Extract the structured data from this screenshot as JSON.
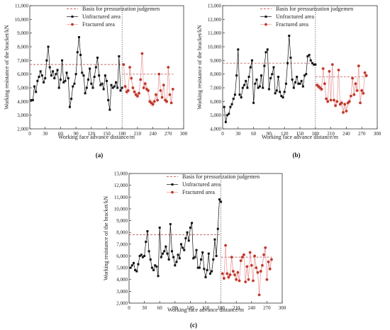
{
  "chart_data": [
    {
      "type": "line",
      "panel_label": "(a)",
      "xlabel": "Working face advance distance/m",
      "ylabel": "Working resistance of the bracket/kN",
      "xlim": [
        0,
        300
      ],
      "ylim": [
        2000,
        11000
      ],
      "xticks": [
        0,
        30,
        60,
        90,
        120,
        150,
        180,
        210,
        240,
        270,
        300
      ],
      "yticks": [
        2000,
        3000,
        4000,
        5000,
        6000,
        7000,
        8000,
        9000,
        10000,
        11000
      ],
      "divider_x": 180,
      "legend": [
        "Basis for pressurization judgemen",
        "Unfractured area",
        "Fractured area"
      ],
      "basis_lines": [
        {
          "x": [
            0,
            180
          ],
          "y": 6700
        },
        {
          "x": [
            180,
            280
          ],
          "y": 6000
        }
      ],
      "series": [
        {
          "name": "Unfractured area",
          "x": [
            3,
            6,
            9,
            12,
            15,
            18,
            21,
            24,
            27,
            30,
            33,
            36,
            39,
            42,
            45,
            48,
            51,
            54,
            57,
            60,
            63,
            66,
            69,
            72,
            75,
            78,
            81,
            84,
            87,
            90,
            93,
            96,
            99,
            102,
            105,
            108,
            111,
            114,
            117,
            120,
            123,
            126,
            129,
            132,
            135,
            138,
            141,
            144,
            147,
            150,
            153,
            156,
            159,
            162,
            165,
            168,
            171,
            174,
            177,
            180
          ],
          "y": [
            4100,
            4100,
            5100,
            4700,
            5500,
            5800,
            6200,
            5900,
            5400,
            5700,
            7000,
            8000,
            6500,
            5900,
            6200,
            5700,
            6000,
            6300,
            5000,
            5600,
            7000,
            5400,
            5500,
            6100,
            5700,
            3600,
            4200,
            5100,
            5300,
            6000,
            7600,
            8700,
            7400,
            6100,
            5900,
            4600,
            5000,
            5600,
            6400,
            5300,
            5000,
            5800,
            6500,
            7200,
            5900,
            5200,
            5300,
            4900,
            5900,
            5500,
            4100,
            3400,
            5200,
            5000,
            5100,
            5400,
            5000,
            7300,
            4800,
            5000
          ]
        },
        {
          "name": "Fractured area",
          "x": [
            183,
            186,
            189,
            192,
            195,
            198,
            201,
            204,
            207,
            210,
            213,
            216,
            219,
            222,
            225,
            228,
            231,
            234,
            237,
            240,
            243,
            246,
            249,
            252,
            255,
            258,
            261,
            264,
            267,
            270,
            273,
            276,
            279
          ],
          "y": [
            6700,
            5100,
            4700,
            4800,
            6500,
            5700,
            5000,
            4700,
            4500,
            4400,
            4600,
            5600,
            7500,
            5000,
            5300,
            4900,
            4800,
            4000,
            3900,
            3800,
            4000,
            4500,
            4100,
            6000,
            4800,
            4300,
            5200,
            4100,
            4000,
            6500,
            4500,
            3900,
            4900
          ]
        }
      ]
    },
    {
      "type": "line",
      "panel_label": "(b)",
      "xlabel": "Working face advance distance/m",
      "ylabel": "Working resistance of the bracket/kN",
      "xlim": [
        0,
        300
      ],
      "ylim": [
        4000,
        13000
      ],
      "xticks": [
        0,
        30,
        60,
        90,
        120,
        150,
        180,
        210,
        240,
        270,
        300
      ],
      "yticks": [
        4000,
        5000,
        6000,
        7000,
        8000,
        9000,
        10000,
        11000,
        12000,
        13000
      ],
      "divider_x": 180,
      "legend": [
        "Basis for pressurization judgemen",
        "Unfractured area",
        "Fractured area"
      ],
      "basis_lines": [
        {
          "x": [
            0,
            180
          ],
          "y": 8800
        },
        {
          "x": [
            180,
            280
          ],
          "y": 7800
        }
      ],
      "series": [
        {
          "name": "Unfractured area",
          "x": [
            3,
            6,
            9,
            12,
            15,
            18,
            21,
            24,
            27,
            30,
            33,
            36,
            39,
            42,
            45,
            48,
            51,
            54,
            57,
            60,
            63,
            66,
            69,
            72,
            75,
            78,
            81,
            84,
            87,
            90,
            93,
            96,
            99,
            102,
            105,
            108,
            111,
            114,
            117,
            120,
            123,
            126,
            129,
            132,
            135,
            138,
            141,
            144,
            147,
            150,
            153,
            156,
            159,
            162,
            165,
            168,
            171,
            174,
            177,
            180
          ],
          "y": [
            5600,
            4500,
            5000,
            5100,
            5600,
            5800,
            6200,
            6500,
            7900,
            9800,
            6500,
            6300,
            7000,
            7200,
            7500,
            7000,
            7800,
            8500,
            9000,
            5900,
            7300,
            7600,
            7000,
            7100,
            7900,
            7000,
            8600,
            9600,
            9800,
            6900,
            7700,
            8000,
            8500,
            6600,
            6800,
            7800,
            6700,
            6400,
            6300,
            6700,
            7300,
            8800,
            10800,
            9200,
            7600,
            7000,
            7400,
            7800,
            7300,
            7300,
            7500,
            7100,
            7900,
            8000,
            9300,
            9400,
            9000,
            8800,
            8700,
            8700
          ]
        },
        {
          "name": "Fractured area",
          "x": [
            183,
            186,
            189,
            192,
            195,
            198,
            201,
            204,
            207,
            210,
            213,
            216,
            219,
            222,
            225,
            228,
            231,
            234,
            237,
            240,
            243,
            246,
            249,
            252,
            255,
            258,
            261,
            264,
            267,
            270,
            273,
            276,
            279
          ],
          "y": [
            7200,
            7100,
            7000,
            6900,
            8400,
            7300,
            6200,
            6000,
            8200,
            6100,
            8700,
            6100,
            5700,
            6000,
            8300,
            5800,
            5900,
            5200,
            5800,
            5300,
            5900,
            6000,
            6400,
            7700,
            6500,
            7300,
            6800,
            8600,
            5900,
            6800,
            6600,
            8100,
            7900
          ]
        }
      ]
    },
    {
      "type": "line",
      "panel_label": "(c)",
      "xlabel": "Working face advance distance/m",
      "ylabel": "Working resistance of the bracket/kN",
      "xlim": [
        0,
        300
      ],
      "ylim": [
        2000,
        13000
      ],
      "xticks": [
        0,
        30,
        60,
        90,
        120,
        150,
        180,
        210,
        240,
        270,
        300
      ],
      "yticks": [
        2000,
        3000,
        4000,
        5000,
        6000,
        7000,
        8000,
        9000,
        10000,
        11000,
        12000,
        13000
      ],
      "divider_x": 180,
      "legend": [
        "Basis for pressurization judgemen",
        "Unfractured area",
        "Fractured area"
      ],
      "basis_lines": [
        {
          "x": [
            0,
            180
          ],
          "y": 7800
        },
        {
          "x": [
            180,
            280
          ],
          "y": 5900
        }
      ],
      "series": [
        {
          "name": "Unfractured area",
          "x": [
            3,
            6,
            9,
            12,
            15,
            18,
            21,
            24,
            27,
            30,
            33,
            36,
            39,
            42,
            45,
            48,
            51,
            54,
            57,
            60,
            63,
            66,
            69,
            72,
            75,
            78,
            81,
            84,
            87,
            90,
            93,
            96,
            99,
            102,
            105,
            108,
            111,
            114,
            117,
            120,
            123,
            126,
            129,
            132,
            135,
            138,
            141,
            144,
            147,
            150,
            153,
            156,
            159,
            162,
            165,
            168,
            171,
            174,
            177,
            180
          ],
          "y": [
            5000,
            5200,
            5400,
            4800,
            4700,
            5300,
            6000,
            6100,
            5900,
            6000,
            7200,
            8100,
            6400,
            5700,
            5000,
            4800,
            5200,
            5100,
            4300,
            8400,
            5900,
            6200,
            6400,
            6800,
            6200,
            5700,
            8700,
            6400,
            5900,
            5200,
            5500,
            6100,
            5800,
            7000,
            6700,
            6500,
            7500,
            8000,
            7300,
            8400,
            8800,
            5800,
            5900,
            6500,
            5000,
            5000,
            5700,
            6300,
            4900,
            4200,
            4800,
            6200,
            4500,
            4700,
            5700,
            7400,
            6000,
            8300,
            10800,
            10600
          ]
        },
        {
          "name": "Fractured area",
          "x": [
            183,
            186,
            189,
            192,
            195,
            198,
            201,
            204,
            207,
            210,
            213,
            216,
            219,
            222,
            225,
            228,
            231,
            234,
            237,
            240,
            243,
            246,
            249,
            252,
            255,
            258,
            261,
            264,
            267,
            270,
            273,
            276,
            279
          ],
          "y": [
            4500,
            4100,
            6900,
            4500,
            4200,
            4400,
            5900,
            4700,
            4400,
            4000,
            4600,
            3900,
            5600,
            5900,
            6100,
            3800,
            5100,
            4000,
            6300,
            5200,
            3900,
            6000,
            5000,
            4600,
            2700,
            4700,
            5200,
            6100,
            6700,
            4000,
            5500,
            4900,
            5700
          ]
        }
      ]
    }
  ]
}
